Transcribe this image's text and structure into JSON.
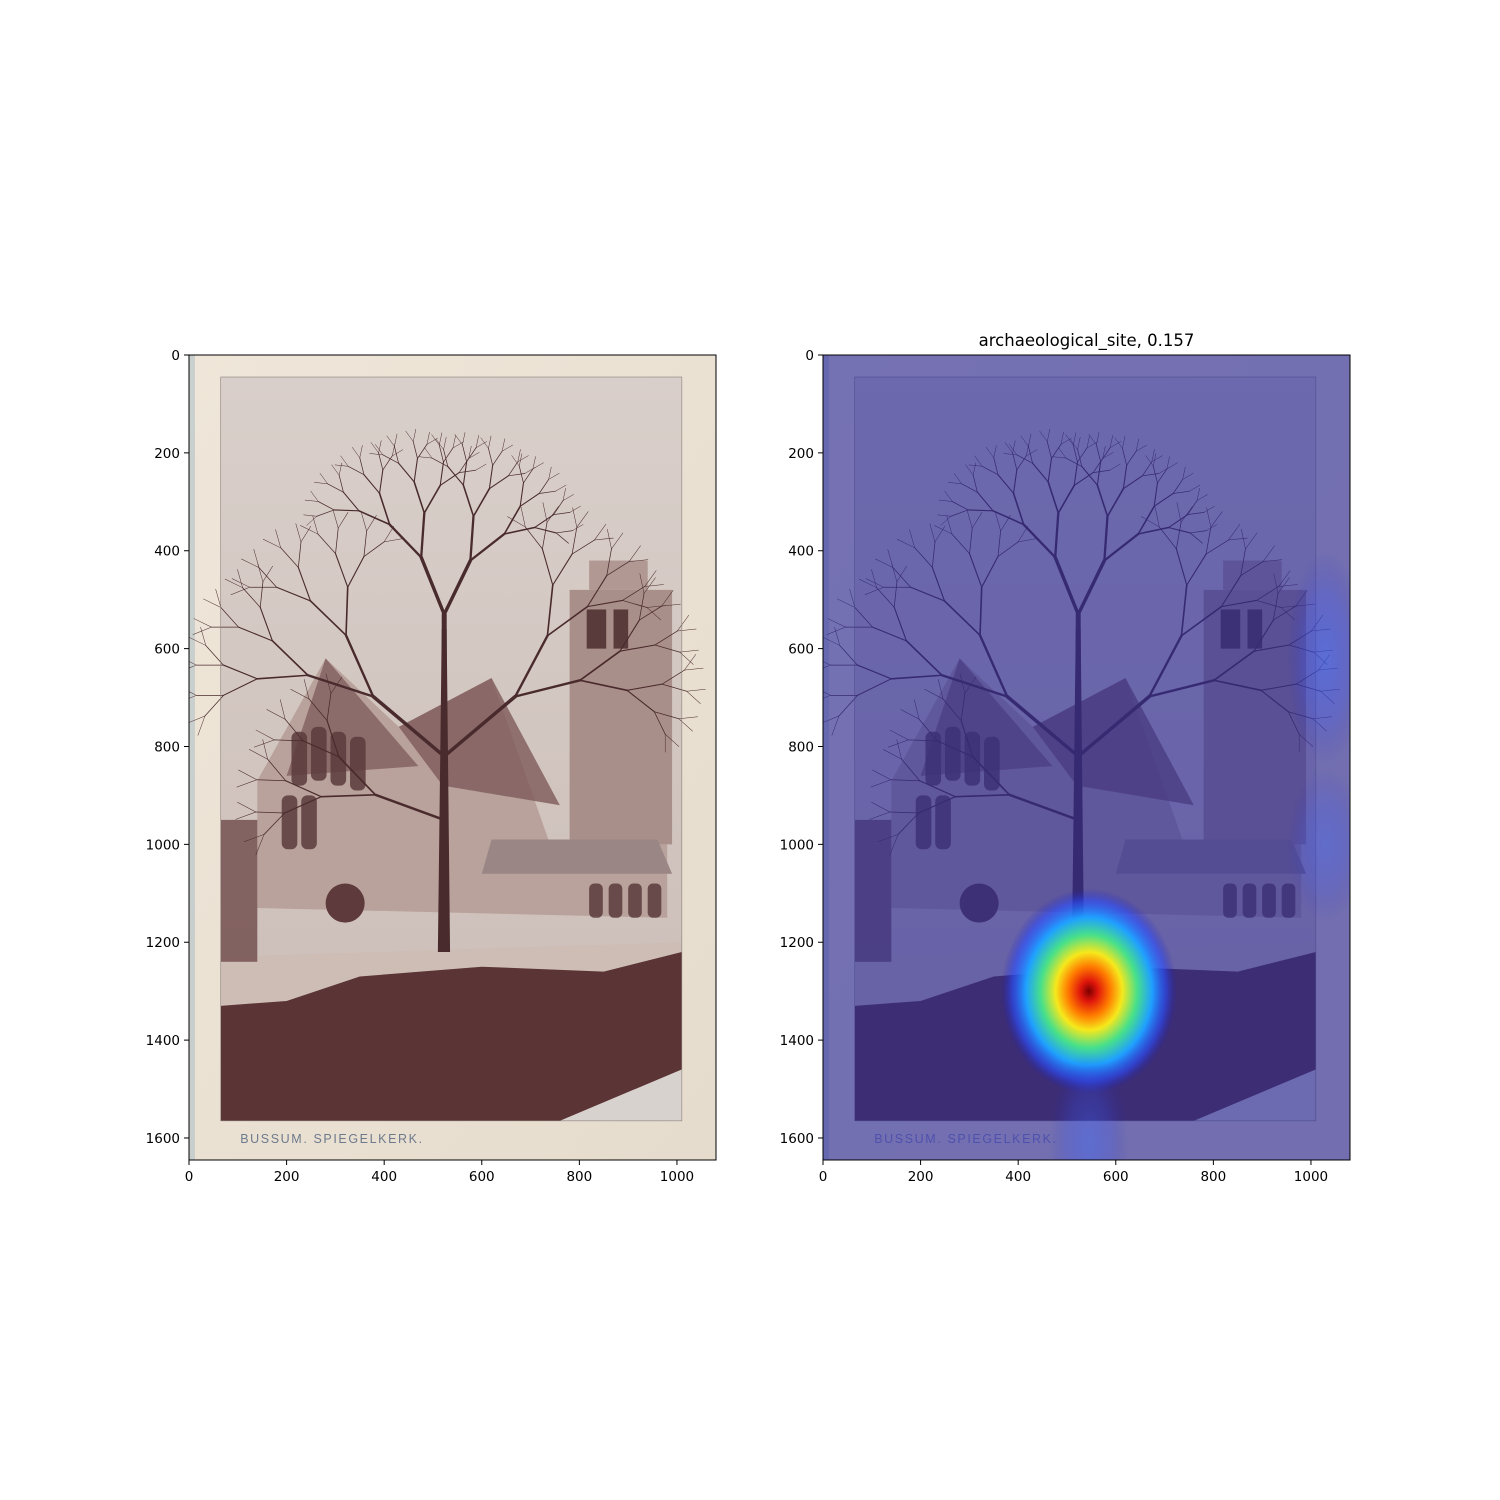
{
  "chart_data": [
    {
      "type": "image",
      "title": "",
      "xlabel": "",
      "ylabel": "",
      "xlim": [
        0,
        1080
      ],
      "ylim": [
        1645,
        0
      ],
      "xticks": [
        0,
        200,
        400,
        600,
        800,
        1000
      ],
      "yticks": [
        0,
        200,
        400,
        600,
        800,
        1000,
        1200,
        1400,
        1600
      ],
      "image_caption": "BUSSUM.  SPIEGELKERK.",
      "caption_color": "#6c7a8c"
    },
    {
      "type": "heatmap",
      "title": "archaeological_site, 0.157",
      "xlabel": "",
      "ylabel": "",
      "xlim": [
        0,
        1080
      ],
      "ylim": [
        1645,
        0
      ],
      "xticks": [
        0,
        200,
        400,
        600,
        800,
        1000
      ],
      "yticks": [
        0,
        200,
        400,
        600,
        800,
        1000,
        1200,
        1400,
        1600
      ],
      "image_caption": "BUSSUM.  SPIEGELKERK.",
      "caption_color": "#8a8fc8",
      "colormap": "jet",
      "hotspots": [
        {
          "x": 545,
          "y": 1300,
          "intensity": 1.0
        },
        {
          "x": 1030,
          "y": 620,
          "intensity": 0.35
        },
        {
          "x": 1030,
          "y": 1000,
          "intensity": 0.25
        },
        {
          "x": 545,
          "y": 1610,
          "intensity": 0.3
        }
      ]
    }
  ]
}
